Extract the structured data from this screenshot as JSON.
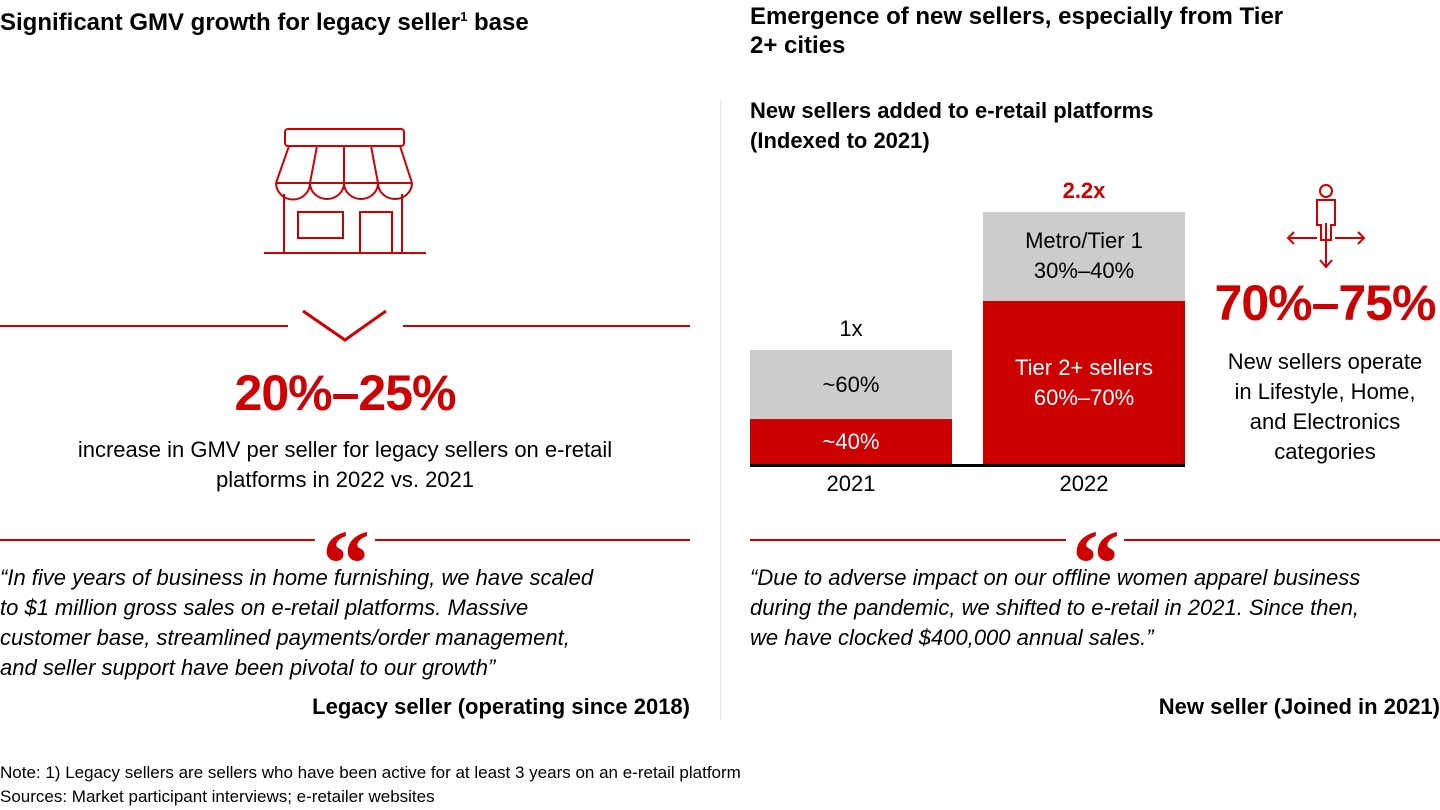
{
  "left": {
    "title": "Significant GMV growth for legacy seller",
    "title_sup": "1",
    "title_end": " base",
    "icon": "storefront-icon",
    "divider_icon": "chevron-down-icon",
    "stat": "20%–25%",
    "stat_text": [
      "increase in GMV per seller for legacy sellers on e-retail",
      "platforms in 2022 vs. 2021"
    ],
    "quote_icon": "quotation-mark-icon",
    "quote_lines": [
      "“In five years of business in home furnishing, we have scaled",
      "to $1 million gross sales on e-retail platforms. Massive",
      "customer base, streamlined payments/order management,",
      "and seller support have been pivotal to our growth”"
    ],
    "attribution": "Legacy seller (operating since 2018)"
  },
  "right": {
    "title_lines": [
      "Emergence of new sellers, especially from Tier",
      "2+ cities"
    ],
    "chart_title_lines": [
      "New sellers added to e-retail platforms",
      "(Indexed to 2021)"
    ],
    "icon": "person-expanding-arrows-icon",
    "stat": "70%–75%",
    "stat_text": [
      "New sellers operate",
      "in Lifestyle, Home,",
      "and Electronics",
      "categories"
    ],
    "quote_lines": [
      "“Due to adverse impact on our offline women apparel business",
      "during the pandemic, we shifted to e-retail in 2021. Since then,",
      "we have clocked $400,000 annual sales.”"
    ],
    "attribution": "New seller (Joined in 2021)"
  },
  "chart_data": {
    "type": "bar",
    "stacked": true,
    "title": "New sellers added to e-retail platforms (Indexed to 2021)",
    "categories": [
      "2021",
      "2022"
    ],
    "totals": [
      1,
      2.2
    ],
    "total_labels": [
      "1x",
      "2.2x"
    ],
    "series": [
      {
        "name": "Tier 2+ sellers",
        "share": [
          0.4,
          0.65
        ],
        "labels": [
          "~40%",
          "60%–70%"
        ],
        "color": "#cc0000"
      },
      {
        "name": "Metro/Tier 1",
        "share": [
          0.6,
          0.35
        ],
        "labels": [
          "~60%",
          "30%–40%"
        ],
        "color": "#cccccc"
      }
    ]
  },
  "notes": [
    "Note: 1) Legacy sellers are sellers who have been active for at least 3 years on an e-retail platform",
    "Sources: Market participant interviews; e-retailer websites"
  ],
  "colors": {
    "accent": "#cc0000",
    "gray": "#cccccc"
  }
}
